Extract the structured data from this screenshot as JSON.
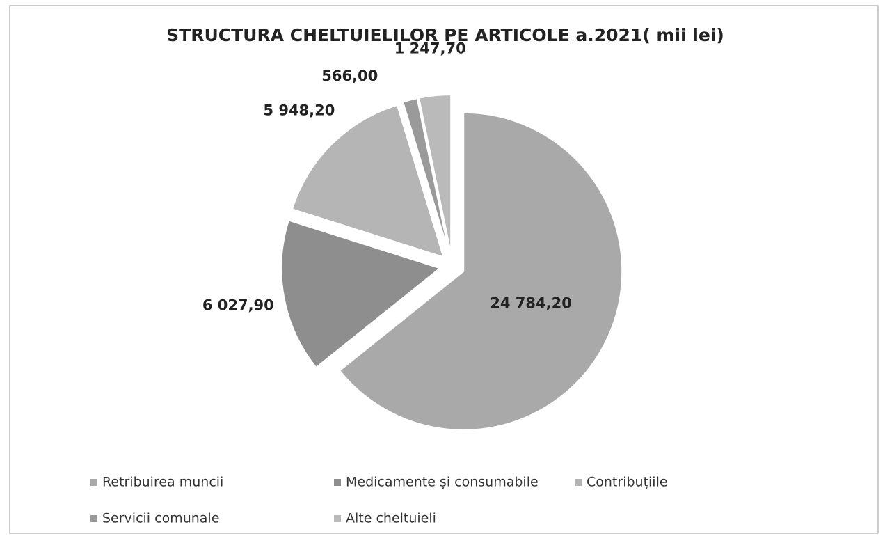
{
  "chart_data": {
    "type": "pie",
    "title": "STRUCTURA CHELTUIELILOR PE ARTICOLE a.2021( mii lei)",
    "categories": [
      "Retribuirea muncii",
      "Medicamente și consumabile",
      "Contribuțiile",
      "Servicii comunale",
      "Alte cheltuieli"
    ],
    "values": [
      24784.2,
      6027.9,
      5948.2,
      566,
      1247.7
    ],
    "value_labels": [
      "24 784,20",
      "6 027,90",
      "5 948,20",
      "566,00",
      "1 247,70"
    ],
    "colors": [
      "#a9a9a9",
      "#8e8e8e",
      "#b5b5b5",
      "#9a9a9a",
      "#bababa"
    ],
    "legend": "bottom"
  }
}
